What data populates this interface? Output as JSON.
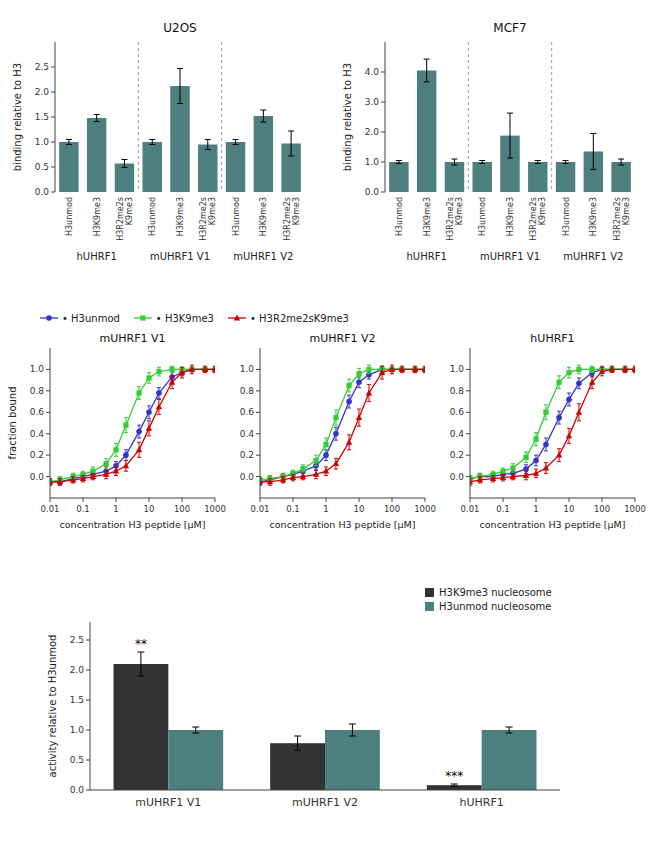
{
  "chart_data": [
    {
      "type": "bar",
      "title": "U2OS",
      "ylabel": "binding relative to H3",
      "categories": [
        "H3unmod",
        "H3K9me3",
        "H3R2me2s\nK9me3",
        "H3unmod",
        "H3K9me3",
        "H3R2me2s\nK9me3",
        "H3unmod",
        "H3K9me3",
        "H3R2me2s\nK9me3"
      ],
      "group_labels": [
        "hUHRF1",
        "mUHRF1 V1",
        "mUHRF1 V2"
      ],
      "values": [
        1.0,
        1.48,
        0.57,
        1.0,
        2.12,
        0.95,
        1.0,
        1.52,
        0.97
      ],
      "errors": [
        0.05,
        0.07,
        0.08,
        0.05,
        0.35,
        0.1,
        0.05,
        0.12,
        0.25
      ],
      "color": "#4d7f7f",
      "ylim": [
        0,
        3.0
      ],
      "yticks": [
        {
          "value": 0,
          "label": "0.0"
        },
        0.5,
        {
          "value": 1.0,
          "label": "1.0"
        },
        1.5,
        {
          "value": 2.0,
          "label": "2.0"
        },
        2.5
      ],
      "grid": false
    },
    {
      "type": "bar",
      "title": "MCF7",
      "ylabel": "binding relative to H3",
      "categories": [
        "H3unmod",
        "H3K9me3",
        "H3R2me2s\nK9me3",
        "H3unmod",
        "H3K9me3",
        "H3R2me2s\nK9me3",
        "H3unmod",
        "H3K9me3",
        "H3R2me2s\nK9me3"
      ],
      "group_labels": [
        "hUHRF1",
        "mUHRF1 V1",
        "mUHRF1 V2"
      ],
      "values": [
        1.0,
        4.05,
        1.0,
        1.0,
        1.88,
        1.0,
        1.0,
        1.35,
        1.0
      ],
      "errors": [
        0.05,
        0.38,
        0.1,
        0.05,
        0.75,
        0.05,
        0.05,
        0.6,
        0.1
      ],
      "color": "#4d7f7f",
      "ylim": [
        0,
        5.0
      ],
      "yticks": [
        {
          "value": 0,
          "label": "0.0"
        },
        {
          "value": 1.0,
          "label": "1.0"
        },
        {
          "value": 2.0,
          "label": "2.0"
        },
        {
          "value": 3.0,
          "label": "3.0"
        },
        {
          "value": 4.0,
          "label": "4.0"
        }
      ],
      "grid": false
    },
    {
      "type": "line",
      "title": "mUHRF1 V1",
      "xlabel": "concentration H3 peptide [μM]",
      "ylabel": "fraction bound",
      "log": "x",
      "x": [
        0.01,
        0.02,
        0.05,
        0.1,
        0.2,
        0.5,
        1.0,
        2.0,
        5.0,
        10.0,
        20.0,
        50.0,
        100.0,
        200.0,
        500.0,
        1000.0
      ],
      "xlim": [
        0.01,
        1000
      ],
      "xticks": [
        0.01,
        0.1,
        1,
        10,
        100,
        1000
      ],
      "ylim": [
        -0.2,
        1.2
      ],
      "yticks": [
        {
          "value": 0,
          "label": "0.0"
        },
        0.2,
        0.4,
        0.6,
        0.8,
        {
          "value": 1.0,
          "label": "1.0"
        }
      ],
      "grid": false,
      "legend": "upper left",
      "series": [
        {
          "name": "• H3unmod",
          "color": "#3333cc",
          "marker": "circle",
          "line_style": "solid",
          "values": [
            -0.05,
            -0.05,
            -0.02,
            0.0,
            0.02,
            0.05,
            0.1,
            0.2,
            0.42,
            0.6,
            0.78,
            0.93,
            0.97,
            1.0,
            1.0,
            1.0
          ],
          "errors": [
            0.03,
            0.03,
            0.03,
            0.03,
            0.03,
            0.04,
            0.04,
            0.05,
            0.06,
            0.06,
            0.05,
            0.04,
            0.03,
            0.02,
            0.02,
            0.02
          ]
        },
        {
          "name": "• H3K9me3",
          "color": "#33cc33",
          "marker": "square",
          "line_style": "solid",
          "values": [
            -0.05,
            -0.03,
            0.0,
            0.02,
            0.05,
            0.12,
            0.25,
            0.48,
            0.78,
            0.92,
            0.98,
            1.0,
            1.0,
            1.0,
            1.0,
            1.0
          ],
          "errors": [
            0.03,
            0.03,
            0.03,
            0.03,
            0.04,
            0.05,
            0.06,
            0.07,
            0.06,
            0.05,
            0.04,
            0.03,
            0.02,
            0.02,
            0.02,
            0.02
          ]
        },
        {
          "name": "• H3R2me2sK9me3",
          "color": "#cc0000",
          "marker": "triangle",
          "line_style": "solid",
          "values": [
            -0.05,
            -0.05,
            -0.03,
            -0.02,
            0.0,
            0.02,
            0.05,
            0.1,
            0.25,
            0.45,
            0.65,
            0.88,
            0.97,
            1.0,
            1.0,
            1.0
          ],
          "errors": [
            0.03,
            0.03,
            0.03,
            0.03,
            0.03,
            0.04,
            0.04,
            0.05,
            0.07,
            0.07,
            0.07,
            0.06,
            0.05,
            0.04,
            0.03,
            0.03
          ]
        }
      ]
    },
    {
      "type": "line",
      "title": "mUHRF1 V2",
      "xlabel": "concentration H3 peptide [μM]",
      "log": "x",
      "x": [
        0.01,
        0.02,
        0.05,
        0.1,
        0.2,
        0.5,
        1.0,
        2.0,
        5.0,
        10.0,
        20.0,
        50.0,
        100.0,
        200.0,
        500.0,
        1000.0
      ],
      "xlim": [
        0.01,
        1000
      ],
      "xticks": [
        0.01,
        0.1,
        1,
        10,
        100,
        1000
      ],
      "ylim": [
        -0.2,
        1.2
      ],
      "yticks": [
        {
          "value": 0,
          "label": "0.0"
        },
        0.2,
        0.4,
        0.6,
        0.8,
        {
          "value": 1.0,
          "label": "1.0"
        }
      ],
      "grid": false,
      "series": [
        {
          "color": "#3333cc",
          "marker": "circle",
          "line_style": "solid",
          "values": [
            -0.05,
            -0.03,
            0.0,
            0.02,
            0.05,
            0.1,
            0.2,
            0.4,
            0.7,
            0.88,
            0.95,
            1.0,
            1.0,
            1.0,
            1.0,
            1.0
          ],
          "errors": [
            0.03,
            0.03,
            0.03,
            0.03,
            0.04,
            0.04,
            0.05,
            0.06,
            0.06,
            0.05,
            0.04,
            0.03,
            0.02,
            0.02,
            0.02,
            0.02
          ]
        },
        {
          "color": "#33cc33",
          "marker": "square",
          "line_style": "solid",
          "values": [
            -0.03,
            -0.02,
            0.0,
            0.03,
            0.07,
            0.15,
            0.3,
            0.55,
            0.85,
            0.96,
            1.0,
            1.0,
            1.0,
            1.0,
            1.0,
            1.0
          ],
          "errors": [
            0.03,
            0.03,
            0.03,
            0.03,
            0.04,
            0.05,
            0.06,
            0.07,
            0.06,
            0.05,
            0.04,
            0.03,
            0.02,
            0.02,
            0.02,
            0.02
          ]
        },
        {
          "color": "#cc0000",
          "marker": "triangle",
          "line_style": "solid",
          "values": [
            -0.05,
            -0.05,
            -0.03,
            -0.01,
            0.0,
            0.02,
            0.05,
            0.12,
            0.32,
            0.55,
            0.78,
            0.97,
            1.0,
            1.0,
            1.0,
            1.0
          ],
          "errors": [
            0.03,
            0.03,
            0.03,
            0.03,
            0.03,
            0.04,
            0.04,
            0.05,
            0.07,
            0.08,
            0.08,
            0.06,
            0.04,
            0.03,
            0.03,
            0.03
          ]
        }
      ]
    },
    {
      "type": "line",
      "title": "hUHRF1",
      "xlabel": "concentration H3 peptide [μM]",
      "log": "x",
      "x": [
        0.01,
        0.02,
        0.05,
        0.1,
        0.2,
        0.5,
        1.0,
        2.0,
        5.0,
        10.0,
        20.0,
        50.0,
        100.0,
        200.0,
        500.0,
        1000.0
      ],
      "xlim": [
        0.01,
        1000
      ],
      "xticks": [
        0.01,
        0.1,
        1,
        10,
        100,
        1000
      ],
      "ylim": [
        -0.2,
        1.2
      ],
      "yticks": [
        {
          "value": 0,
          "label": "0.0"
        },
        0.2,
        0.4,
        0.6,
        0.8,
        {
          "value": 1.0,
          "label": "1.0"
        }
      ],
      "grid": false,
      "series": [
        {
          "color": "#3333cc",
          "marker": "circle",
          "line_style": "solid",
          "values": [
            -0.02,
            0.0,
            0.0,
            0.02,
            0.03,
            0.07,
            0.15,
            0.3,
            0.55,
            0.72,
            0.87,
            0.97,
            1.0,
            1.0,
            1.0,
            1.0
          ],
          "errors": [
            0.03,
            0.03,
            0.03,
            0.03,
            0.04,
            0.04,
            0.05,
            0.06,
            0.06,
            0.06,
            0.05,
            0.04,
            0.03,
            0.02,
            0.02,
            0.02
          ]
        },
        {
          "color": "#33cc33",
          "marker": "square",
          "line_style": "solid",
          "values": [
            -0.02,
            0.0,
            0.02,
            0.05,
            0.08,
            0.18,
            0.35,
            0.6,
            0.88,
            0.97,
            1.0,
            1.0,
            1.0,
            1.0,
            1.0,
            1.0
          ],
          "errors": [
            0.03,
            0.03,
            0.03,
            0.03,
            0.04,
            0.05,
            0.06,
            0.07,
            0.06,
            0.05,
            0.04,
            0.03,
            0.02,
            0.02,
            0.02,
            0.02
          ]
        },
        {
          "color": "#cc0000",
          "marker": "triangle",
          "line_style": "solid",
          "values": [
            -0.05,
            -0.03,
            -0.02,
            -0.01,
            0.0,
            0.01,
            0.03,
            0.08,
            0.2,
            0.38,
            0.6,
            0.88,
            0.98,
            1.0,
            1.0,
            1.0
          ],
          "errors": [
            0.03,
            0.03,
            0.03,
            0.03,
            0.03,
            0.04,
            0.04,
            0.05,
            0.06,
            0.07,
            0.08,
            0.06,
            0.04,
            0.03,
            0.03,
            0.03
          ]
        }
      ]
    },
    {
      "type": "bar",
      "ylabel": "activity relative to H3unmod",
      "categories": [
        "mUHRF1 V1",
        "mUHRF1 V2",
        "hUHRF1"
      ],
      "ylim": [
        0,
        2.8
      ],
      "yticks": [
        {
          "value": 0,
          "label": "0.0"
        },
        0.5,
        {
          "value": 1.0,
          "label": "1.0"
        },
        1.5,
        {
          "value": 2.0,
          "label": "2.0"
        },
        2.5
      ],
      "grid": false,
      "legend": "upper right",
      "series": [
        {
          "name": "H3K9me3 nucleosome",
          "color": "#333333",
          "values": [
            2.1,
            0.78,
            0.08
          ],
          "errors": [
            0.2,
            0.12,
            0.02
          ]
        },
        {
          "name": "H3unmod nucleosome",
          "color": "#4d7f7f",
          "values": [
            1.0,
            1.0,
            1.0
          ],
          "errors": [
            0.05,
            0.1,
            0.05
          ]
        }
      ],
      "annotations": [
        {
          "text": "**",
          "series": 0,
          "index": 0
        },
        {
          "text": "***",
          "series": 0,
          "index": 2
        }
      ]
    }
  ]
}
